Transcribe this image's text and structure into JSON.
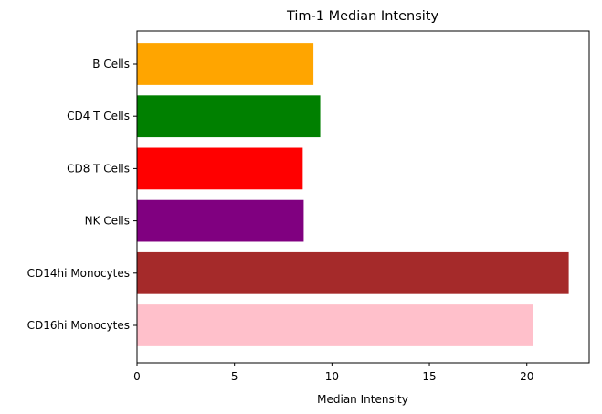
{
  "chart_data": {
    "type": "bar",
    "orientation": "horizontal",
    "title": "Tim-1 Median Intensity",
    "xlabel": "Median Intensity",
    "ylabel": "",
    "xlim": [
      0,
      23.2
    ],
    "xticks": [
      0,
      5,
      10,
      15,
      20
    ],
    "grid": false,
    "categories": [
      "B Cells",
      "CD4 T Cells",
      "CD8 T Cells",
      "NK Cells",
      "CD14hi Monocytes",
      "CD16hi Monocytes"
    ],
    "values": [
      9.05,
      9.4,
      8.5,
      8.55,
      22.15,
      20.3
    ],
    "colors": [
      "#ffa500",
      "#008000",
      "#ff0000",
      "#800080",
      "#a52a2a",
      "#ffc0cb"
    ]
  }
}
